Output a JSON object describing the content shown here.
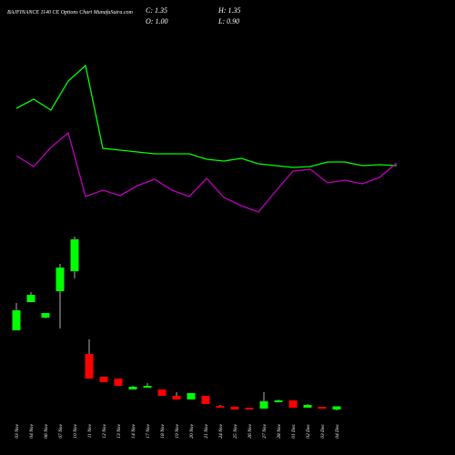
{
  "chart_data": {
    "type": "candlestick",
    "title": "BAJFINANCE 1140  CE Options Chart MunafaSutra.com",
    "ohlc_labels": [
      "C: 1.35",
      "H: 1.35",
      "O: 1.00",
      "L: 0.90"
    ],
    "categories": [
      "03 Nov",
      "04 Nov",
      "06 Nov",
      "07 Nov",
      "10 Nov",
      "11 Nov",
      "12 Nov",
      "13 Nov",
      "14 Nov",
      "17 Nov",
      "18 Nov",
      "19 Nov",
      "20 Nov",
      "21 Nov",
      "24 Nov",
      "25 Nov",
      "26 Nov",
      "27 Nov",
      "28 Nov",
      "01 Dec",
      "02 Dec",
      "03 Dec",
      "04 Dec"
    ],
    "open": [
      9.7,
      12.8,
      11.1,
      14.0,
      16.2,
      7.1,
      4.6,
      4.4,
      3.2,
      3.4,
      3.2,
      2.5,
      2.1,
      2.5,
      1.4,
      1.3,
      1.2,
      1.1,
      1.8,
      2.0,
      1.2,
      1.3,
      1.0
    ],
    "high": [
      12.7,
      13.9,
      11.6,
      17.0,
      20.0,
      8.7,
      4.6,
      4.4,
      3.6,
      3.9,
      3.2,
      2.9,
      2.8,
      2.5,
      1.5,
      1.3,
      1.2,
      2.9,
      2.1,
      2.0,
      1.6,
      1.3,
      1.35
    ],
    "low": [
      9.7,
      12.8,
      11.0,
      9.9,
      15.4,
      4.4,
      4.0,
      3.6,
      3.2,
      3.4,
      2.5,
      2.1,
      2.1,
      1.6,
      1.2,
      1.0,
      1.0,
      1.1,
      1.8,
      1.2,
      1.2,
      1.1,
      0.9
    ],
    "close": [
      11.9,
      13.6,
      11.6,
      16.6,
      19.7,
      4.4,
      4.0,
      3.6,
      3.5,
      3.6,
      2.5,
      2.1,
      2.8,
      1.6,
      1.2,
      1.0,
      1.0,
      1.9,
      2.0,
      1.2,
      1.5,
      1.1,
      1.35
    ],
    "up_color": "#00ff00",
    "down_color": "#ff0000",
    "ylim": [
      0,
      22
    ],
    "y2lim": [
      0,
      100
    ],
    "series": [
      {
        "color": "#00ff00",
        "axis": "y2",
        "values": [
          65.5,
          70.5,
          64.5,
          80.5,
          89,
          43.5,
          42.5,
          41.5,
          40.5,
          40.5,
          40.5,
          37.5,
          36.5,
          38,
          35,
          34,
          33,
          33.5,
          36,
          36,
          34,
          34.5,
          34
        ]
      },
      {
        "color": "#c000c0",
        "axis": "y2",
        "values": [
          39.5,
          33.5,
          44,
          52,
          17,
          20.5,
          17.5,
          23,
          26.5,
          20.5,
          17,
          27,
          16.5,
          12,
          8.5,
          20,
          31,
          32,
          24.5,
          26,
          24,
          27.5,
          35.5
        ]
      }
    ]
  }
}
